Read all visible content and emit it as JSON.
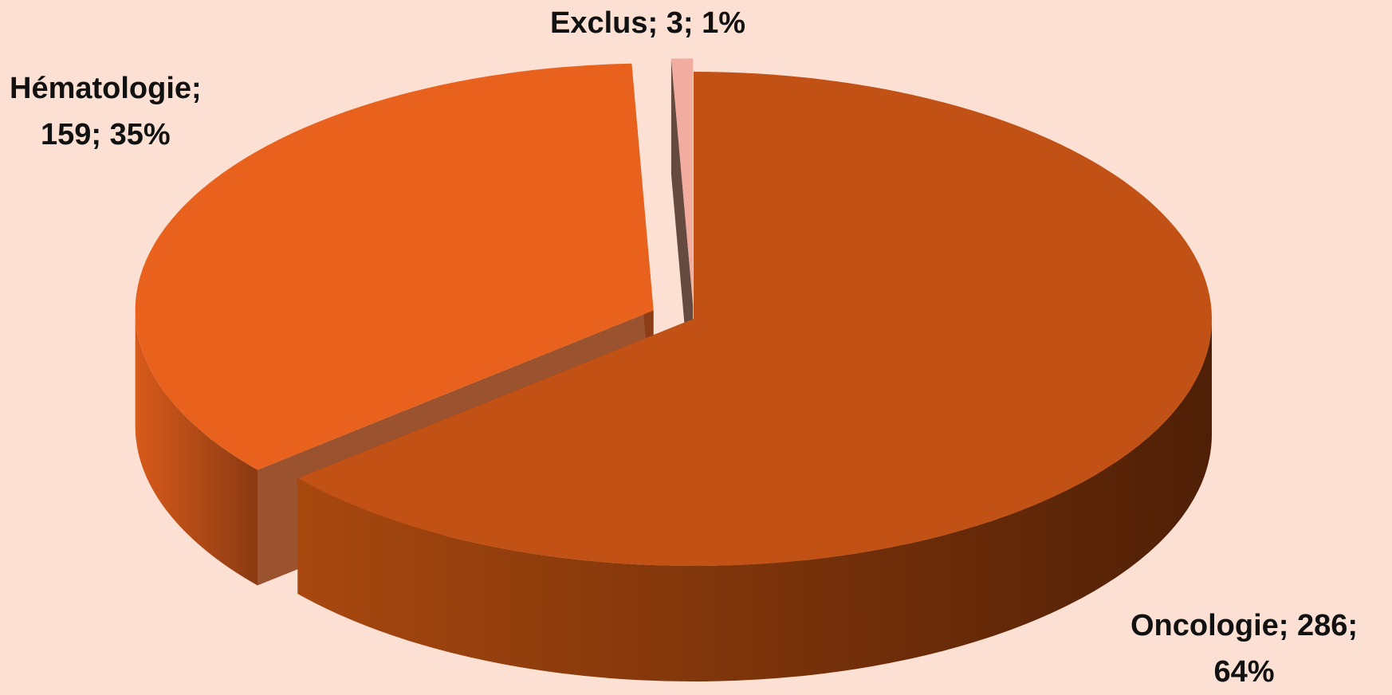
{
  "chart_data": {
    "type": "pie",
    "style": "3d-exploded",
    "background_color": "#fce0d3",
    "slices": [
      {
        "name": "Oncologie",
        "value": 286,
        "percent": "64%",
        "label_line1": "Oncologie; 286;",
        "label_line2": "64%",
        "color": "#c25116",
        "side_light": "#a8480f",
        "side_dark": "#4f1f06"
      },
      {
        "name": "Hématologie",
        "value": 159,
        "percent": "35%",
        "label_line1": "Hématologie;",
        "label_line2": "159; 35%",
        "color": "#e8621e",
        "side_light": "#d85a1b",
        "side_dark": "#8a3a12"
      },
      {
        "name": "Exclus",
        "value": 3,
        "percent": "1%",
        "label_line1": "Exclus; 3; 1%",
        "label_line2": "",
        "color": "#f2ada0",
        "side_light": "#6b4535",
        "side_dark": "#4a2f25"
      }
    ]
  }
}
